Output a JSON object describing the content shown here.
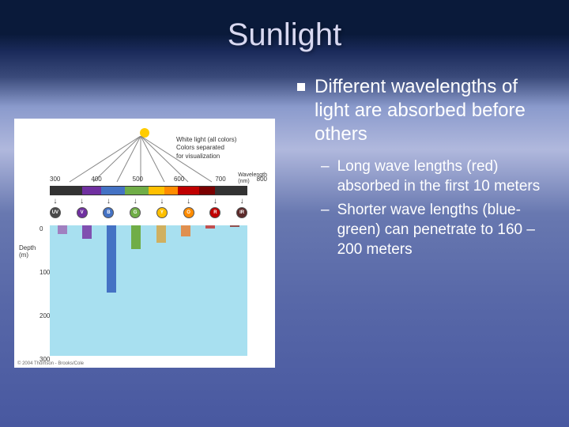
{
  "title": "Sunlight",
  "main_bullet": "Different wavelengths of light are absorbed before others",
  "sub_bullets": [
    "Long wave lengths (red) absorbed in the first 10 meters",
    "Shorter wave lengths (blue-green) can penetrate to 160 – 200 meters"
  ],
  "diagram": {
    "top_labels": {
      "line1": "White light (all colors)",
      "line2": "Colors separated",
      "line3": "for visualization"
    },
    "wavelength_ticks": [
      "300",
      "400",
      "500",
      "600",
      "700",
      "800"
    ],
    "wavelength_unit_l1": "Wavelength",
    "wavelength_unit_l2": "(nm)",
    "spectrum_colors": [
      "#333333",
      "#7030a0",
      "#4472c4",
      "#70ad47",
      "#ffc000",
      "#ff8c00",
      "#c00000",
      "#7a0000",
      "#333333"
    ],
    "spectrum_flex": [
      1.2,
      0.7,
      0.9,
      0.9,
      0.6,
      0.5,
      0.8,
      0.6,
      1.2
    ],
    "bands": [
      {
        "label": "UV",
        "color": "#4a4a4a",
        "pen_depth": 20,
        "pen_color": "#a080c0"
      },
      {
        "label": "V",
        "color": "#7030a0",
        "pen_depth": 30,
        "pen_color": "#8050b0"
      },
      {
        "label": "B",
        "color": "#4472c4",
        "pen_depth": 155,
        "pen_color": "#4472c4"
      },
      {
        "label": "G",
        "color": "#70ad47",
        "pen_depth": 55,
        "pen_color": "#70ad47"
      },
      {
        "label": "Y",
        "color": "#ffc000",
        "pen_depth": 40,
        "pen_color": "#d0b060"
      },
      {
        "label": "O",
        "color": "#ff8c00",
        "pen_depth": 25,
        "pen_color": "#e09050"
      },
      {
        "label": "R",
        "color": "#c00000",
        "pen_depth": 8,
        "pen_color": "#c05050"
      },
      {
        "label": "IR",
        "color": "#5c2a2a",
        "pen_depth": 4,
        "pen_color": "#905050"
      }
    ],
    "depth_label_l1": "Depth",
    "depth_label_l2": "(m)",
    "depth_ticks": [
      0,
      100,
      200,
      300
    ],
    "water_color": "#a8e0f0",
    "copyright": "© 2004 Thomson - Brooks/Cole"
  }
}
